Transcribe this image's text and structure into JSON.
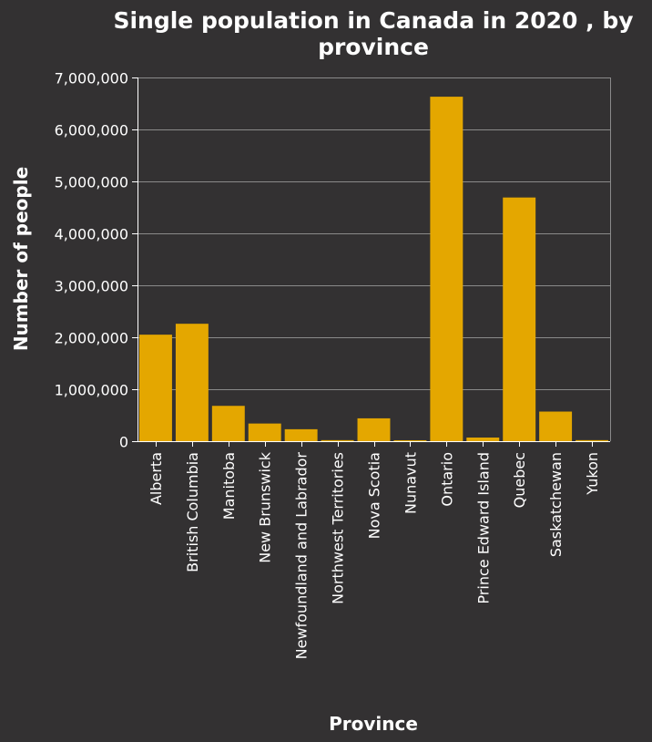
{
  "chart_data": {
    "type": "bar",
    "title": "Single population in Canada in 2020 , by province",
    "title_lines": [
      "Single population in Canada in 2020 , by",
      "province"
    ],
    "xlabel": "Province",
    "ylabel": "Number of people",
    "categories": [
      "Alberta",
      "British Columbia",
      "Manitoba",
      "New Brunswick",
      "Newfoundland and Labrador",
      "Northwest Territories",
      "Nova Scotia",
      "Nunavut",
      "Ontario",
      "Prince Edward Island",
      "Quebec",
      "Saskatchewan",
      "Yukon"
    ],
    "values": [
      2050000,
      2260000,
      680000,
      340000,
      230000,
      20000,
      440000,
      18000,
      6630000,
      70000,
      4690000,
      570000,
      20000
    ],
    "ylim": [
      0,
      7000000
    ],
    "yticks": [
      0,
      1000000,
      2000000,
      3000000,
      4000000,
      5000000,
      6000000,
      7000000
    ],
    "ytick_labels": [
      "0",
      "1,000,000",
      "2,000,000",
      "3,000,000",
      "4,000,000",
      "5,000,000",
      "6,000,000",
      "7,000,000"
    ],
    "grid": true,
    "legend": "none",
    "colors": {
      "bar": "#e4a700",
      "background": "#333132",
      "grid": "#8a8a8a",
      "text": "#ffffff"
    }
  }
}
